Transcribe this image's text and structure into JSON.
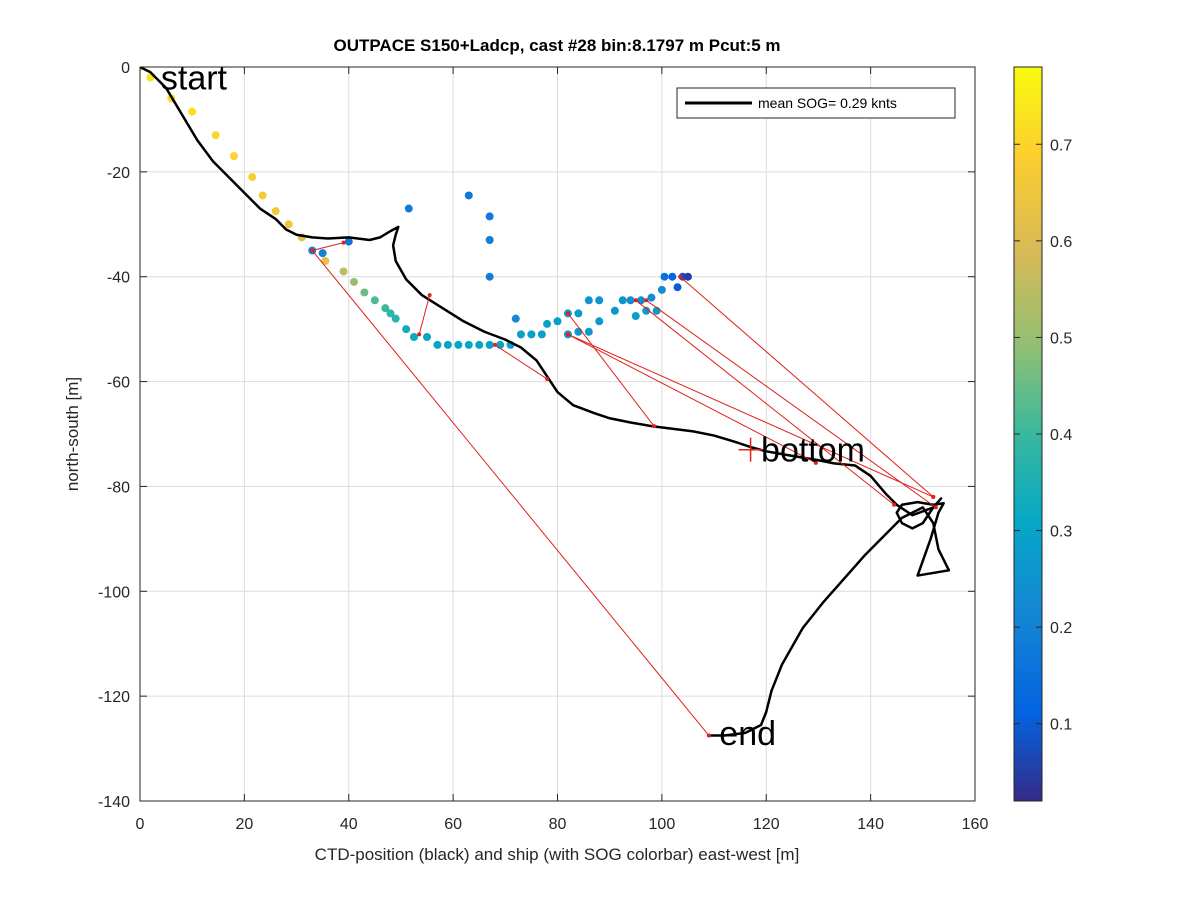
{
  "chart_data": {
    "type": "scatter",
    "title": "OUTPACE S150+Ladcp, cast #28 bin:8.1797 m  Pcut:5 m",
    "xlabel": "CTD-position (black) and ship (with SOG colorbar) east-west [m]",
    "ylabel": "north-south [m]",
    "xlim": [
      0,
      160
    ],
    "ylim": [
      -140,
      0
    ],
    "xticks": [
      0,
      20,
      40,
      60,
      80,
      100,
      120,
      140,
      160
    ],
    "yticks": [
      0,
      -20,
      -40,
      -60,
      -80,
      -100,
      -120,
      -140
    ],
    "grid": true,
    "legend": {
      "location": "top-right",
      "entries": [
        "mean SOG=  0.29 knts"
      ]
    },
    "colorbar": {
      "colormap": "parula",
      "range": [
        0.02,
        0.78
      ],
      "ticks": [
        0.1,
        0.2,
        0.3,
        0.4,
        0.5,
        0.6,
        0.7
      ]
    },
    "annotations": [
      {
        "text": "start",
        "x": 4,
        "y": -2
      },
      {
        "text": "bottom",
        "x": 119,
        "y": -73
      },
      {
        "text": "end",
        "x": 111,
        "y": -127
      }
    ],
    "bottom_marker": {
      "x": 117,
      "y": -73
    },
    "series": [
      {
        "name": "CTD position",
        "style": "line",
        "color": "#000000",
        "points": [
          [
            0,
            0
          ],
          [
            2,
            -1
          ],
          [
            5,
            -4
          ],
          [
            8,
            -9
          ],
          [
            11,
            -14
          ],
          [
            14,
            -18
          ],
          [
            17,
            -21
          ],
          [
            20,
            -24
          ],
          [
            23,
            -27
          ],
          [
            26,
            -29
          ],
          [
            28,
            -31
          ],
          [
            30,
            -32
          ],
          [
            33,
            -32.5
          ],
          [
            36,
            -32.7
          ],
          [
            40,
            -32.5
          ],
          [
            44,
            -33
          ],
          [
            46,
            -32.5
          ],
          [
            48,
            -31.3
          ],
          [
            49.5,
            -30.5
          ],
          [
            49,
            -32
          ],
          [
            48.5,
            -34
          ],
          [
            49,
            -37
          ],
          [
            51,
            -40.5
          ],
          [
            54,
            -43.5
          ],
          [
            58,
            -46
          ],
          [
            62,
            -48.5
          ],
          [
            66,
            -50.5
          ],
          [
            70,
            -52
          ],
          [
            73,
            -53.5
          ],
          [
            76,
            -56
          ],
          [
            78,
            -59
          ],
          [
            80,
            -62
          ],
          [
            83,
            -64.5
          ],
          [
            87,
            -66
          ],
          [
            90,
            -67
          ],
          [
            94,
            -67.8
          ],
          [
            98,
            -68.5
          ],
          [
            102,
            -69
          ],
          [
            106,
            -69.5
          ],
          [
            110,
            -70.3
          ],
          [
            114,
            -71.5
          ],
          [
            117,
            -72.5
          ],
          [
            120,
            -73.3
          ],
          [
            124,
            -74
          ],
          [
            127,
            -74.5
          ],
          [
            130,
            -75
          ],
          [
            133,
            -75.6
          ],
          [
            137,
            -76
          ],
          [
            140,
            -78
          ],
          [
            143,
            -81.5
          ],
          [
            145,
            -83.5
          ],
          [
            148,
            -85.5
          ],
          [
            152,
            -84
          ],
          [
            153.5,
            -82.3
          ],
          [
            152,
            -84
          ],
          [
            150,
            -87
          ],
          [
            148,
            -88
          ],
          [
            146,
            -87
          ],
          [
            145,
            -85
          ],
          [
            146,
            -83.5
          ],
          [
            149,
            -83
          ],
          [
            152,
            -83.5
          ],
          [
            154,
            -83.2
          ],
          [
            153,
            -85
          ],
          [
            151.5,
            -90
          ],
          [
            149,
            -97
          ],
          [
            155,
            -96
          ],
          [
            153,
            -92
          ],
          [
            152,
            -87
          ],
          [
            150,
            -84
          ],
          [
            146,
            -86
          ],
          [
            143,
            -89
          ],
          [
            139,
            -93
          ],
          [
            135,
            -97.5
          ],
          [
            131,
            -102
          ],
          [
            127,
            -107
          ],
          [
            123,
            -114
          ],
          [
            121,
            -119
          ],
          [
            120,
            -123
          ],
          [
            119,
            -125.5
          ],
          [
            116,
            -127
          ],
          [
            112,
            -127.5
          ],
          [
            109,
            -127.5
          ]
        ]
      },
      {
        "name": "ship",
        "style": "markers",
        "colored_by": "SOG",
        "points": [
          [
            0,
            0,
            0.75
          ],
          [
            2,
            -2,
            0.73
          ],
          [
            6,
            -6,
            0.72
          ],
          [
            10,
            -8.5,
            0.72
          ],
          [
            14.5,
            -13,
            0.7
          ],
          [
            18,
            -17,
            0.7
          ],
          [
            21.5,
            -21,
            0.68
          ],
          [
            23.5,
            -24.5,
            0.67
          ],
          [
            26,
            -27.5,
            0.66
          ],
          [
            28.5,
            -30,
            0.65
          ],
          [
            31,
            -32.5,
            0.62
          ],
          [
            33,
            -35,
            0.22
          ],
          [
            35,
            -35.5,
            0.2
          ],
          [
            35.5,
            -37,
            0.62
          ],
          [
            39,
            -39,
            0.55
          ],
          [
            41,
            -41,
            0.5
          ],
          [
            43,
            -43,
            0.45
          ],
          [
            45,
            -44.5,
            0.42
          ],
          [
            47,
            -46,
            0.4
          ],
          [
            48,
            -47,
            0.38
          ],
          [
            49,
            -48,
            0.37
          ],
          [
            51,
            -50,
            0.33
          ],
          [
            52.5,
            -51.5,
            0.32
          ],
          [
            55,
            -51.5,
            0.3
          ],
          [
            57,
            -53,
            0.3
          ],
          [
            59,
            -53,
            0.3
          ],
          [
            61,
            -53,
            0.3
          ],
          [
            63,
            -53,
            0.3
          ],
          [
            65,
            -53,
            0.3
          ],
          [
            67,
            -53,
            0.3
          ],
          [
            69,
            -53,
            0.29
          ],
          [
            71,
            -53,
            0.29
          ],
          [
            73,
            -51,
            0.29
          ],
          [
            75,
            -51,
            0.29
          ],
          [
            77,
            -51,
            0.29
          ],
          [
            78,
            -49,
            0.29
          ],
          [
            80,
            -48.5,
            0.28
          ],
          [
            82,
            -47,
            0.27
          ],
          [
            84,
            -47,
            0.27
          ],
          [
            86,
            -44.5,
            0.25
          ],
          [
            88,
            -44.5,
            0.25
          ],
          [
            91,
            -46.5,
            0.26
          ],
          [
            88,
            -48.5,
            0.27
          ],
          [
            86,
            -50.5,
            0.27
          ],
          [
            84,
            -50.5,
            0.27
          ],
          [
            82,
            -51,
            0.27
          ],
          [
            92.5,
            -44.5,
            0.25
          ],
          [
            94,
            -44.5,
            0.23
          ],
          [
            96,
            -44.5,
            0.23
          ],
          [
            98,
            -44,
            0.23
          ],
          [
            100,
            -42.5,
            0.23
          ],
          [
            100.5,
            -40,
            0.15
          ],
          [
            102,
            -40,
            0.12
          ],
          [
            103,
            -42,
            0.1
          ],
          [
            104,
            -40,
            0.08
          ],
          [
            105,
            -40,
            0.05
          ],
          [
            99,
            -46.5,
            0.28
          ],
          [
            97,
            -46.5,
            0.28
          ],
          [
            95,
            -47.5,
            0.28
          ],
          [
            72,
            -48,
            0.22
          ],
          [
            51.5,
            -27,
            0.18
          ],
          [
            63,
            -24.5,
            0.17
          ],
          [
            67,
            -28.5,
            0.18
          ],
          [
            67,
            -33,
            0.19
          ],
          [
            67,
            -40,
            0.19
          ],
          [
            40,
            -33.3,
            0.17
          ]
        ]
      },
      {
        "name": "ladcp links",
        "style": "segments",
        "color": "#e0201b",
        "segments": [
          [
            [
              33,
              -35
            ],
            [
              39,
              -33.5
            ]
          ],
          [
            [
              33,
              -35
            ],
            [
              109,
              -127.5
            ]
          ],
          [
            [
              53.5,
              -51
            ],
            [
              55.5,
              -43.5
            ]
          ],
          [
            [
              68,
              -53
            ],
            [
              78,
              -59.5
            ]
          ],
          [
            [
              82,
              -47
            ],
            [
              98.5,
              -68.5
            ]
          ],
          [
            [
              82,
              -51
            ],
            [
              129.5,
              -75.5
            ]
          ],
          [
            [
              95,
              -44.5
            ],
            [
              144.5,
              -83.5
            ]
          ],
          [
            [
              97,
              -44.5
            ],
            [
              152.5,
              -84
            ]
          ],
          [
            [
              103.5,
              -40
            ],
            [
              152,
              -82
            ]
          ],
          [
            [
              82,
              -51
            ],
            [
              152,
              -82
            ]
          ]
        ]
      }
    ]
  }
}
